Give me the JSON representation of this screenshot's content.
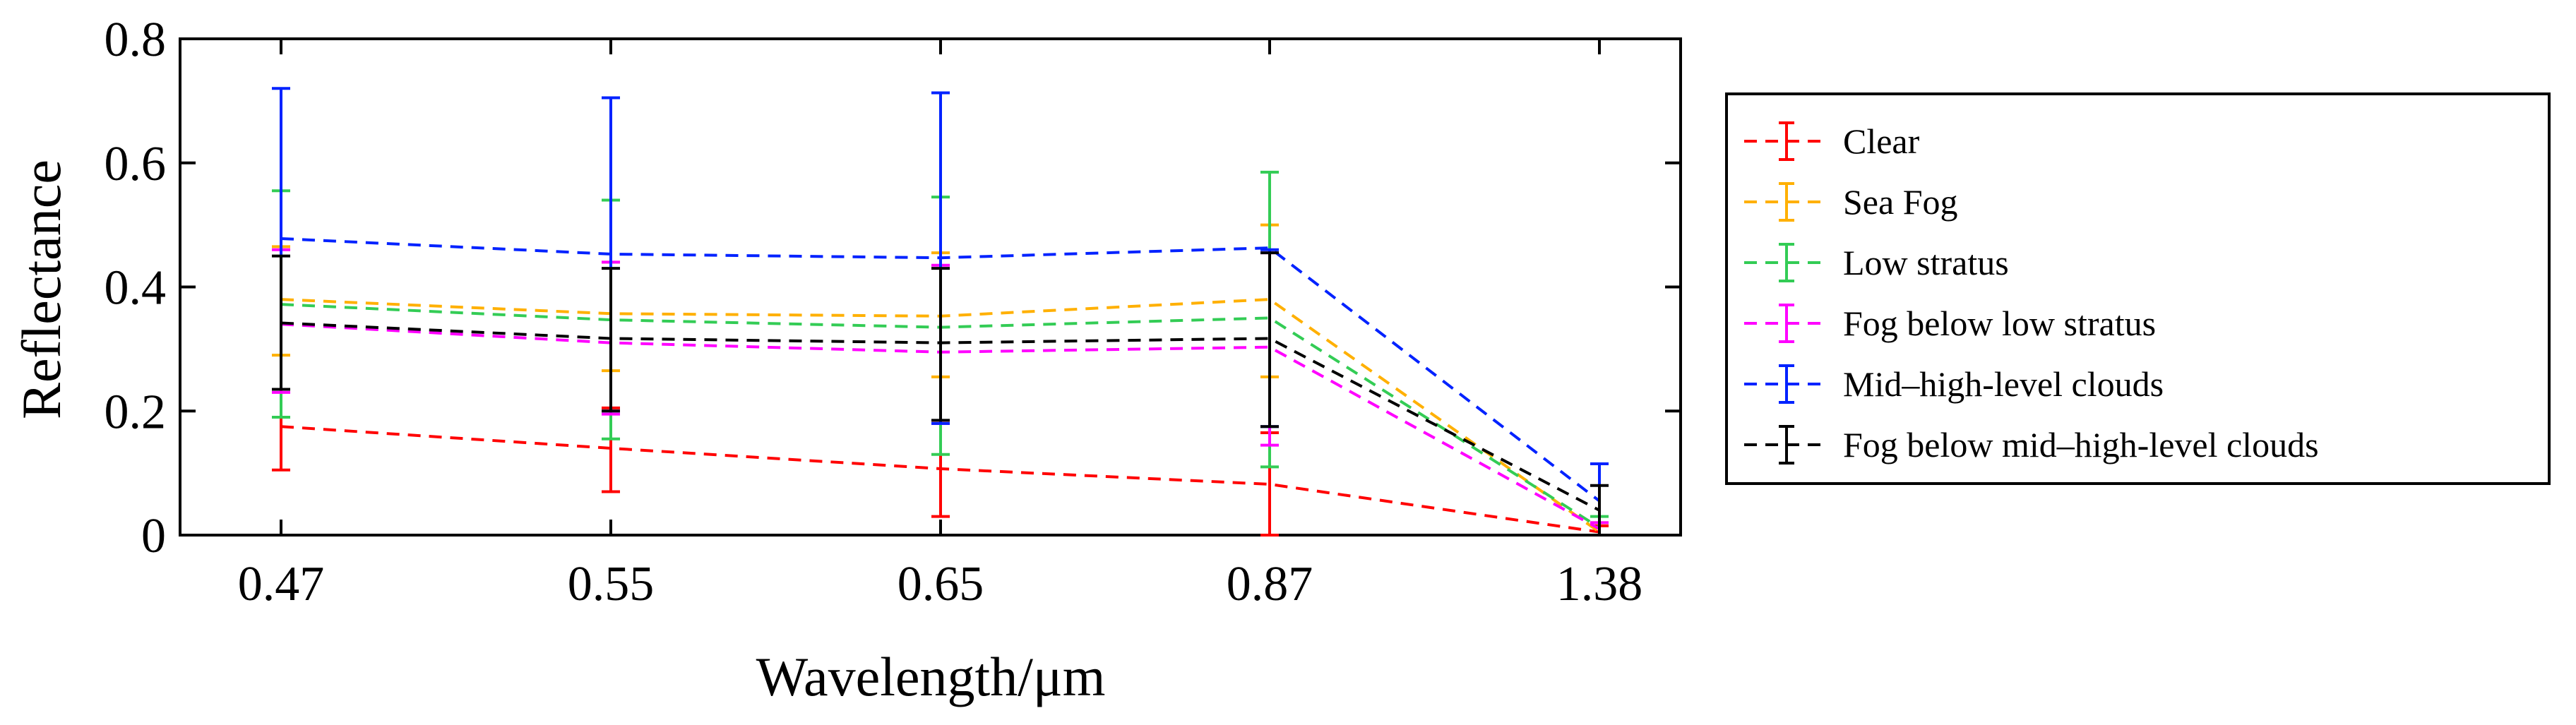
{
  "chart_data": {
    "type": "line",
    "title": "",
    "xlabel": "Wavelength/μm",
    "ylabel": "Reflectance",
    "categories": [
      "0.47",
      "0.55",
      "0.65",
      "0.87",
      "1.38"
    ],
    "ylim": [
      0,
      0.8
    ],
    "yticks": [
      0,
      0.2,
      0.4,
      0.6,
      0.8
    ],
    "ytick_labels": [
      "0",
      "0.2",
      "0.4",
      "0.6",
      "0.8"
    ],
    "grid": false,
    "legend_position": "right",
    "series": [
      {
        "name": "Clear",
        "color": "#ff0000",
        "values": [
          0.175,
          0.14,
          0.107,
          0.082,
          0.005
        ],
        "err_low": [
          0.105,
          0.07,
          0.03,
          0.0,
          0.0
        ],
        "err_high": [
          0.235,
          0.205,
          0.18,
          0.165,
          0.015
        ]
      },
      {
        "name": "Sea Fog",
        "color": "#ffb000",
        "values": [
          0.38,
          0.357,
          0.353,
          0.38,
          0.005
        ],
        "err_low": [
          0.29,
          0.265,
          0.255,
          0.255,
          0.0
        ],
        "err_high": [
          0.465,
          0.44,
          0.455,
          0.5,
          0.02
        ]
      },
      {
        "name": "Low stratus",
        "color": "#33cc55",
        "values": [
          0.372,
          0.347,
          0.335,
          0.35,
          0.012
        ],
        "err_low": [
          0.19,
          0.155,
          0.13,
          0.11,
          0.0
        ],
        "err_high": [
          0.555,
          0.54,
          0.545,
          0.585,
          0.03
        ]
      },
      {
        "name": "Fog below low stratus",
        "color": "#ff00ff",
        "values": [
          0.34,
          0.31,
          0.295,
          0.303,
          0.01
        ],
        "err_low": [
          0.23,
          0.195,
          0.18,
          0.145,
          0.0
        ],
        "err_high": [
          0.46,
          0.44,
          0.435,
          0.455,
          0.02
        ]
      },
      {
        "name": "Mid–high-level clouds",
        "color": "#0022ff",
        "values": [
          0.478,
          0.453,
          0.447,
          0.463,
          0.055
        ],
        "err_low": [
          0.235,
          0.2,
          0.18,
          0.175,
          0.0
        ],
        "err_high": [
          0.72,
          0.705,
          0.713,
          0.46,
          0.115
        ]
      },
      {
        "name": "Fog below mid–high-level clouds",
        "color": "#000000",
        "values": [
          0.342,
          0.317,
          0.31,
          0.317,
          0.04
        ],
        "err_low": [
          0.235,
          0.2,
          0.185,
          0.175,
          0.0
        ],
        "err_high": [
          0.45,
          0.43,
          0.43,
          0.455,
          0.08
        ]
      }
    ]
  }
}
